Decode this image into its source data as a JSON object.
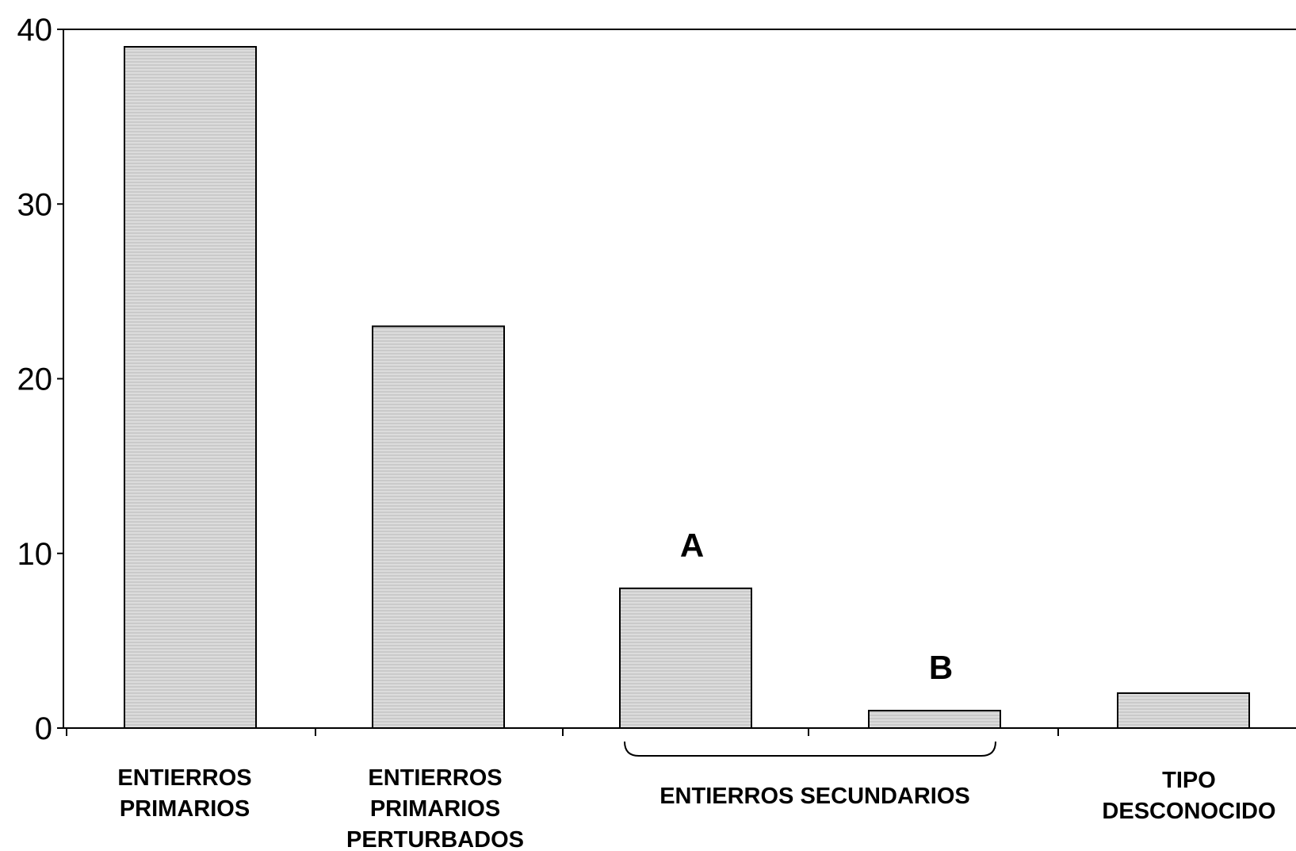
{
  "chart_data": {
    "type": "bar",
    "categories": [
      "ENTIERROS PRIMARIOS",
      "ENTIERROS PRIMARIOS PERTURBADOS",
      "A",
      "B",
      "TIPO DESCONOCIDO"
    ],
    "values": [
      39,
      23,
      8,
      1,
      2
    ],
    "ylim": [
      0,
      40
    ],
    "yticks": [
      0,
      10,
      20,
      30,
      40
    ],
    "grid": false,
    "bar_color": "#d6d6d6",
    "category_labels": [
      [
        "ENTIERROS",
        "PRIMARIOS"
      ],
      [
        "ENTIERROS",
        "PRIMARIOS",
        "PERTURBADOS"
      ],
      [],
      [],
      [
        "TIPO",
        "DESCONOCIDO"
      ]
    ],
    "bar_annotations": [
      "",
      "",
      "A",
      "B",
      ""
    ],
    "group_label": {
      "text": "ENTIERROS SECUNDARIOS",
      "spans": [
        2,
        3
      ]
    }
  }
}
